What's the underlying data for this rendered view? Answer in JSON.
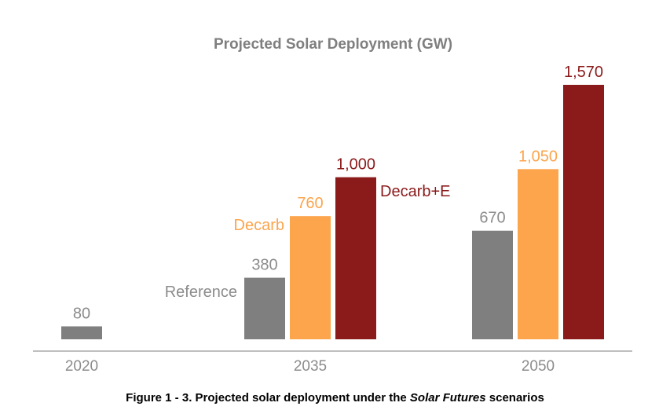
{
  "chart_data": {
    "type": "bar",
    "title": "Projected Solar Deployment (GW)",
    "categories": [
      "2020",
      "2035",
      "2050"
    ],
    "series": [
      {
        "name": "Reference",
        "color": "#7f7f7f",
        "values": [
          80,
          380,
          670
        ],
        "labels": [
          "80",
          "380",
          "670"
        ]
      },
      {
        "name": "Decarb",
        "color": "#fca54d",
        "values": [
          null,
          760,
          1050
        ],
        "labels": [
          "",
          "760",
          "1,050"
        ]
      },
      {
        "name": "Decarb+E",
        "color": "#8b1a1a",
        "values": [
          null,
          1000,
          1570
        ],
        "labels": [
          "",
          "1,000",
          "1,570"
        ]
      }
    ],
    "xlabel": "",
    "ylabel": "",
    "ylim": [
      0,
      1570
    ],
    "grid": false,
    "legend": "inline labels next to 2035 bars"
  },
  "caption": {
    "prefix": "Figure 1 - 3. Projected solar deployment under the ",
    "italic": "Solar Futures",
    "suffix": " scenarios"
  }
}
